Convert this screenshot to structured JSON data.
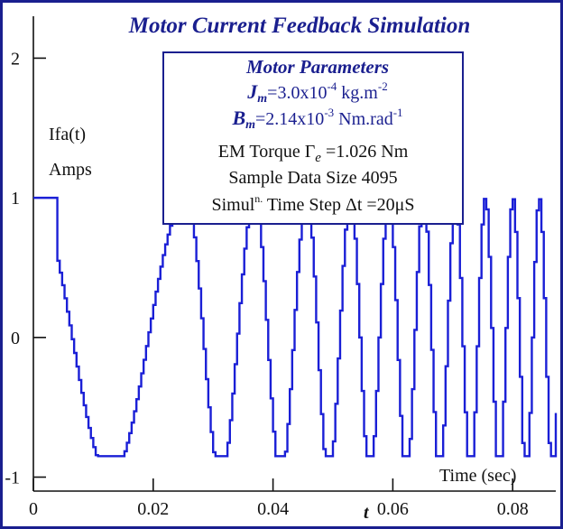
{
  "colors": {
    "frame": "#1a1f8f",
    "series": "#1a1fd6",
    "axis": "#111111",
    "text_dark": "#1a1f8f"
  },
  "title": "Motor Current Feedback Simulation",
  "params": {
    "heading": "Motor Parameters",
    "jm_symbol": "J",
    "jm_sub": "m",
    "jm_value": "=3.0x10",
    "jm_exp": "-4",
    "jm_unit": " kg.m",
    "jm_unit_exp": "-2",
    "bm_symbol": "B",
    "bm_sub": "m",
    "bm_value": "=2.14x10",
    "bm_exp": "-3",
    "bm_unit": " Nm.rad",
    "bm_unit_exp": "-1",
    "torque_prefix": "EM Torque Γ",
    "torque_sub": "e",
    "torque_value": " =1.026 Nm",
    "sample": "Sample Data Size 4095",
    "simul_prefix": "Simul",
    "simul_sup": "n.",
    "simul_rest": " Time Step Δt =20μS"
  },
  "chart_data": {
    "type": "line",
    "ylabel": "Ifa(t)",
    "yunit": "Amps",
    "xlabel": "Time (sec)",
    "xaxis_symbol": "t",
    "xlim": [
      0,
      0.0872
    ],
    "ylim": [
      -1.1,
      2.3
    ],
    "x_ticks": [
      0,
      0.02,
      0.04,
      0.06,
      0.08
    ],
    "x_tick_labels": [
      "0",
      "0.02",
      "0.04",
      "0.06",
      "0.08"
    ],
    "y_ticks": [
      -1,
      0,
      1,
      2
    ],
    "y_tick_labels": [
      "-1",
      "0",
      "1",
      "2"
    ],
    "series": [
      {
        "waveform": "cos(2π·f(t)·t), linearly rising frequency (chirp), staircase-sampled, clipped at -0.85",
        "time_step_s": 2e-05,
        "peaks_x": [
          0,
          0.0254,
          0.0368,
          0.0455,
          0.0528,
          0.0592,
          0.065,
          0.0703,
          0.0753,
          0.0799,
          0.0843
        ],
        "peak_value": 1.0,
        "trough_value": -0.85,
        "trough_x_first": 0.0175
      }
    ]
  }
}
